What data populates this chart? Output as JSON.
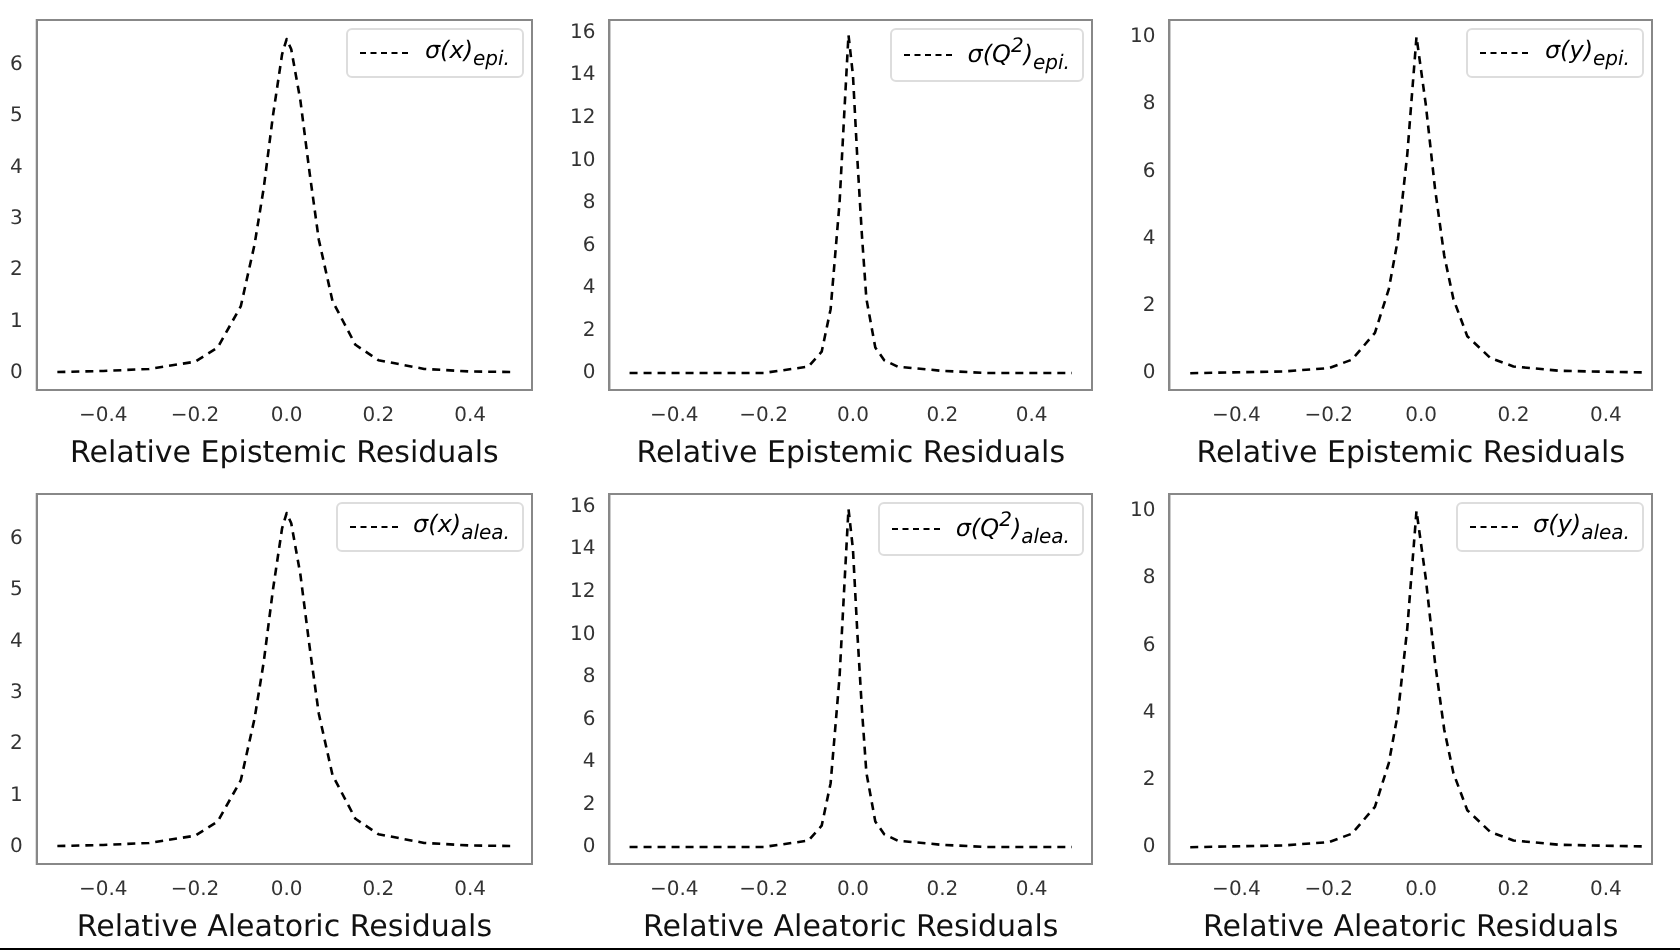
{
  "chart_data": [
    {
      "type": "line",
      "xlabel": "Relative Epistemic Residuals",
      "legend": "top right",
      "marker": "none",
      "line_style": "dashed",
      "xlim": [
        -0.545,
        0.535
      ],
      "ylim": [
        -0.33,
        6.87
      ],
      "xticks": [
        {
          "value": -0.4,
          "label": "−0.4"
        },
        {
          "value": -0.2,
          "label": "−0.2"
        },
        {
          "value": 0,
          "label": "0.0"
        },
        {
          "value": 0.2,
          "label": "0.2"
        },
        {
          "value": 0.4,
          "label": "0.4"
        }
      ],
      "yticks": [
        0,
        1,
        2,
        3,
        4,
        5,
        6
      ],
      "x": [
        -0.5,
        -0.4,
        -0.3,
        -0.2,
        -0.15,
        -0.1,
        -0.07,
        -0.05,
        -0.03,
        -0.01,
        0,
        0.01,
        0.03,
        0.05,
        0.07,
        0.1,
        0.15,
        0.2,
        0.3,
        0.4,
        0.49
      ],
      "series": [
        {
          "name": "σ(x)$_{epi.}$",
          "color": "#000000",
          "values": [
            0.02,
            0.04,
            0.08,
            0.22,
            0.5,
            1.3,
            2.5,
            3.6,
            5.0,
            6.2,
            6.5,
            6.3,
            5.3,
            3.9,
            2.6,
            1.4,
            0.55,
            0.25,
            0.08,
            0.03,
            0.02
          ]
        }
      ]
    },
    {
      "type": "line",
      "xlabel": "Relative Epistemic Residuals",
      "legend": "top right",
      "marker": "none",
      "line_style": "dashed",
      "xlim": [
        -0.545,
        0.535
      ],
      "ylim": [
        -0.8,
        16.6
      ],
      "xticks": [
        {
          "value": -0.4,
          "label": "−0.4"
        },
        {
          "value": -0.2,
          "label": "−0.2"
        },
        {
          "value": 0,
          "label": "0.0"
        },
        {
          "value": 0.2,
          "label": "0.2"
        },
        {
          "value": 0.4,
          "label": "0.4"
        }
      ],
      "yticks": [
        0,
        2,
        4,
        6,
        8,
        10,
        12,
        14,
        16
      ],
      "x": [
        -0.5,
        -0.3,
        -0.2,
        -0.1,
        -0.07,
        -0.05,
        -0.03,
        -0.02,
        -0.01,
        0,
        0.01,
        0.02,
        0.03,
        0.05,
        0.07,
        0.1,
        0.2,
        0.3,
        0.49
      ],
      "series": [
        {
          "name": "σ(Q$^{2}$)$_{epi.}$",
          "color": "#000000",
          "values": [
            0,
            0,
            0,
            0.3,
            1.0,
            3,
            8,
            12,
            15.9,
            14,
            10,
            6.5,
            3.5,
            1.2,
            0.6,
            0.3,
            0.1,
            0,
            0
          ]
        }
      ]
    },
    {
      "type": "line",
      "xlabel": "Relative Epistemic Residuals",
      "legend": "top right",
      "marker": "none",
      "line_style": "dashed",
      "xlim": [
        -0.545,
        0.5
      ],
      "ylim": [
        -0.5,
        10.5
      ],
      "xticks": [
        {
          "value": -0.4,
          "label": "−0.4"
        },
        {
          "value": -0.2,
          "label": "−0.2"
        },
        {
          "value": 0,
          "label": "0.0"
        },
        {
          "value": 0.2,
          "label": "0.2"
        },
        {
          "value": 0.4,
          "label": "0.4"
        }
      ],
      "yticks": [
        0,
        2,
        4,
        6,
        8,
        10
      ],
      "x": [
        -0.5,
        -0.3,
        -0.2,
        -0.15,
        -0.1,
        -0.07,
        -0.05,
        -0.03,
        -0.01,
        0.01,
        0.03,
        0.05,
        0.07,
        0.1,
        0.15,
        0.2,
        0.3,
        0.49
      ],
      "series": [
        {
          "name": "σ(y)$_{epi.}$",
          "color": "#000000",
          "values": [
            0,
            0.05,
            0.15,
            0.4,
            1.2,
            2.5,
            4,
            6.5,
            10,
            8,
            5.5,
            3.5,
            2.2,
            1.1,
            0.45,
            0.2,
            0.07,
            0.02
          ]
        }
      ]
    },
    {
      "type": "line",
      "xlabel": "Relative Aleatoric Residuals",
      "legend": "top right",
      "marker": "none",
      "line_style": "dashed",
      "xlim": [
        -0.545,
        0.535
      ],
      "ylim": [
        -0.33,
        6.87
      ],
      "xticks": [
        {
          "value": -0.4,
          "label": "−0.4"
        },
        {
          "value": -0.2,
          "label": "−0.2"
        },
        {
          "value": 0,
          "label": "0.0"
        },
        {
          "value": 0.2,
          "label": "0.2"
        },
        {
          "value": 0.4,
          "label": "0.4"
        }
      ],
      "yticks": [
        0,
        1,
        2,
        3,
        4,
        5,
        6
      ],
      "x": [
        -0.5,
        -0.4,
        -0.3,
        -0.2,
        -0.15,
        -0.1,
        -0.07,
        -0.05,
        -0.03,
        -0.01,
        0,
        0.01,
        0.03,
        0.05,
        0.07,
        0.1,
        0.15,
        0.2,
        0.3,
        0.4,
        0.49
      ],
      "series": [
        {
          "name": "σ(x)$_{alea.}$",
          "color": "#000000",
          "values": [
            0.02,
            0.04,
            0.08,
            0.22,
            0.5,
            1.3,
            2.5,
            3.6,
            5.0,
            6.2,
            6.5,
            6.3,
            5.3,
            3.9,
            2.6,
            1.4,
            0.55,
            0.25,
            0.08,
            0.03,
            0.02
          ]
        }
      ]
    },
    {
      "type": "line",
      "xlabel": "Relative Aleatoric Residuals",
      "legend": "top right",
      "marker": "none",
      "line_style": "dashed",
      "xlim": [
        -0.545,
        0.535
      ],
      "ylim": [
        -0.8,
        16.6
      ],
      "xticks": [
        {
          "value": -0.4,
          "label": "−0.4"
        },
        {
          "value": -0.2,
          "label": "−0.2"
        },
        {
          "value": 0,
          "label": "0.0"
        },
        {
          "value": 0.2,
          "label": "0.2"
        },
        {
          "value": 0.4,
          "label": "0.4"
        }
      ],
      "yticks": [
        0,
        2,
        4,
        6,
        8,
        10,
        12,
        14,
        16
      ],
      "x": [
        -0.5,
        -0.3,
        -0.2,
        -0.1,
        -0.07,
        -0.05,
        -0.03,
        -0.02,
        -0.01,
        0,
        0.01,
        0.02,
        0.03,
        0.05,
        0.07,
        0.1,
        0.2,
        0.3,
        0.49
      ],
      "series": [
        {
          "name": "σ(Q$^{2}$)$_{alea.}$",
          "color": "#000000",
          "values": [
            0,
            0,
            0,
            0.3,
            1.0,
            3,
            8,
            12,
            15.9,
            14,
            10,
            6.5,
            3.5,
            1.2,
            0.6,
            0.3,
            0.1,
            0,
            0
          ]
        }
      ]
    },
    {
      "type": "line",
      "xlabel": "Relative Aleatoric Residuals",
      "legend": "top right",
      "marker": "none",
      "line_style": "dashed",
      "xlim": [
        -0.545,
        0.5
      ],
      "ylim": [
        -0.5,
        10.5
      ],
      "xticks": [
        {
          "value": -0.4,
          "label": "−0.4"
        },
        {
          "value": -0.2,
          "label": "−0.2"
        },
        {
          "value": 0,
          "label": "0.0"
        },
        {
          "value": 0.2,
          "label": "0.2"
        },
        {
          "value": 0.4,
          "label": "0.4"
        }
      ],
      "yticks": [
        0,
        2,
        4,
        6,
        8,
        10
      ],
      "x": [
        -0.5,
        -0.3,
        -0.2,
        -0.15,
        -0.1,
        -0.07,
        -0.05,
        -0.03,
        -0.01,
        0.01,
        0.03,
        0.05,
        0.07,
        0.1,
        0.15,
        0.2,
        0.3,
        0.49
      ],
      "series": [
        {
          "name": "σ(y)$_{alea.}$",
          "color": "#000000",
          "values": [
            0,
            0.05,
            0.15,
            0.4,
            1.2,
            2.5,
            4,
            6.5,
            10,
            8,
            5.5,
            3.5,
            2.2,
            1.1,
            0.45,
            0.2,
            0.07,
            0.02
          ]
        }
      ]
    }
  ]
}
